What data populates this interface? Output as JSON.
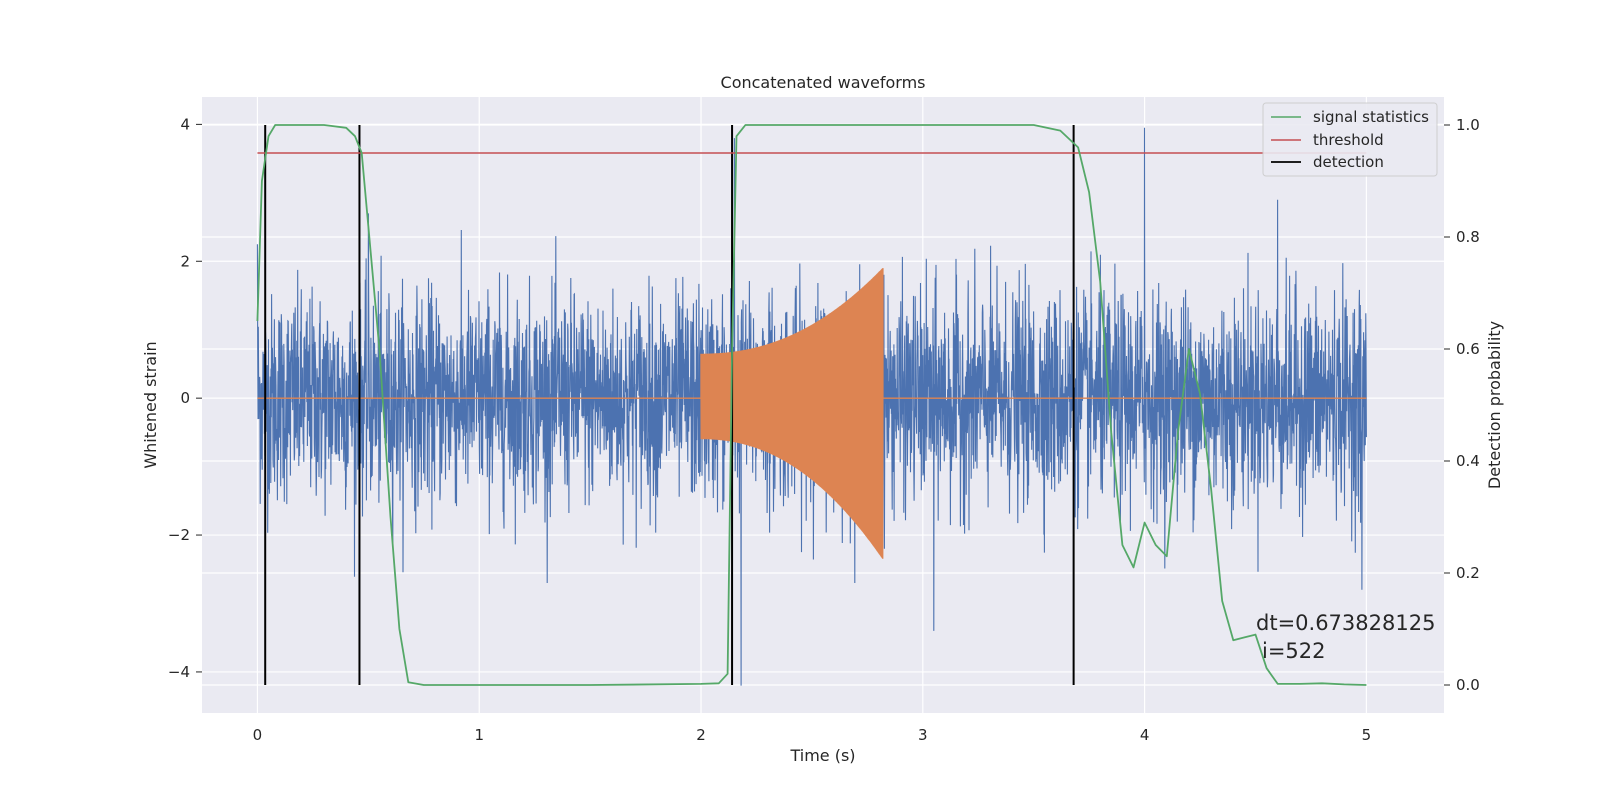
{
  "chart_data": {
    "type": "line",
    "title": "Concatenated waveforms",
    "xlabel": "Time (s)",
    "ylabel_left": "Whitened strain",
    "ylabel_right": "Detection probability",
    "xlim": [
      -0.25,
      5.35
    ],
    "ylim_left": [
      -4.6,
      4.4
    ],
    "ylim_right": [
      -0.05,
      1.05
    ],
    "x_ticks": [
      0,
      1,
      2,
      3,
      4,
      5
    ],
    "x_tick_labels": [
      "0",
      "1",
      "2",
      "3",
      "4",
      "5"
    ],
    "y_left_ticks": [
      4,
      2,
      0,
      -2,
      -4
    ],
    "y_left_tick_labels": [
      "4",
      "2",
      "0",
      "−2",
      "−4"
    ],
    "y_right_ticks": [
      1.0,
      0.8,
      0.6,
      0.4,
      0.2,
      0.0
    ],
    "y_right_tick_labels": [
      "1.0",
      "0.8",
      "0.6",
      "0.4",
      "0.2",
      "0.0"
    ],
    "grid": true,
    "legend_position": "top-right",
    "series": [
      {
        "name": "",
        "kind": "whitened-noise",
        "axis": "left",
        "color": "#4c72b0",
        "x_range": [
          0,
          5
        ],
        "typical_amplitude": [
          -1.5,
          2.0
        ],
        "peaks": [
          {
            "x": 0.0,
            "y": 2.25
          },
          {
            "x": 0.5,
            "y": 2.7
          },
          {
            "x": 2.15,
            "y": 3.8
          },
          {
            "x": 2.18,
            "y": -4.2
          },
          {
            "x": 3.05,
            "y": -3.4
          },
          {
            "x": 4.0,
            "y": 3.95
          },
          {
            "x": 4.6,
            "y": 2.9
          },
          {
            "x": 4.98,
            "y": -2.8
          }
        ]
      },
      {
        "name": "",
        "kind": "injected-chirp",
        "axis": "left",
        "color": "#dd8452",
        "x_range": [
          2.0,
          2.82
        ],
        "envelope_start": [
          0.65,
          -0.6
        ],
        "envelope_end": [
          1.9,
          -2.35
        ],
        "baseline": 0
      },
      {
        "name": "signal statistics",
        "axis": "right",
        "color": "#55a868",
        "x": [
          0.0,
          0.02,
          0.05,
          0.08,
          0.12,
          0.2,
          0.3,
          0.4,
          0.44,
          0.47,
          0.5,
          0.55,
          0.6,
          0.64,
          0.68,
          0.75,
          1.0,
          1.5,
          2.0,
          2.08,
          2.12,
          2.14,
          2.16,
          2.2,
          2.3,
          3.0,
          3.5,
          3.62,
          3.7,
          3.75,
          3.8,
          3.85,
          3.9,
          3.95,
          4.0,
          4.05,
          4.1,
          4.15,
          4.2,
          4.25,
          4.3,
          4.35,
          4.4,
          4.45,
          4.5,
          4.55,
          4.6,
          4.7,
          4.8,
          4.9,
          5.0
        ],
        "y": [
          0.65,
          0.9,
          0.98,
          1.0,
          1.0,
          1.0,
          1.0,
          0.995,
          0.98,
          0.95,
          0.82,
          0.6,
          0.3,
          0.1,
          0.005,
          0.0,
          0.0,
          0.0,
          0.002,
          0.003,
          0.02,
          0.6,
          0.98,
          1.0,
          1.0,
          1.0,
          1.0,
          0.99,
          0.96,
          0.88,
          0.72,
          0.45,
          0.25,
          0.21,
          0.29,
          0.25,
          0.23,
          0.45,
          0.6,
          0.52,
          0.35,
          0.15,
          0.08,
          0.085,
          0.09,
          0.03,
          0.002,
          0.002,
          0.003,
          0.001,
          0.0
        ]
      },
      {
        "name": "threshold",
        "axis": "right",
        "color": "#c44e52",
        "value": 0.95,
        "x_range": [
          0,
          5
        ]
      },
      {
        "name": "detection",
        "axis": "right",
        "color": "#000000",
        "x": [
          0.035,
          0.46,
          2.14,
          3.68
        ],
        "y_range": [
          0.0,
          1.0
        ]
      }
    ],
    "annotations": [
      "dt=0.673828125",
      "i=522"
    ]
  }
}
